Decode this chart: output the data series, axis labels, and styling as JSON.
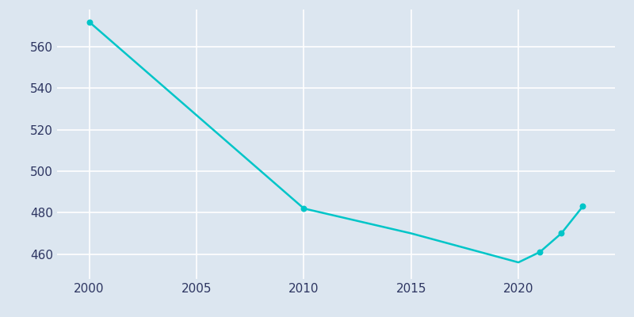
{
  "years": [
    2000,
    2010,
    2015,
    2020,
    2021,
    2022,
    2023
  ],
  "population": [
    572,
    482,
    470,
    456,
    461,
    470,
    483
  ],
  "line_color": "#00C5C8",
  "marker_years": [
    2000,
    2010,
    2021,
    2022,
    2023
  ],
  "marker_population": [
    572,
    482,
    461,
    470,
    483
  ],
  "bg_color": "#DCE6F0",
  "plot_bg_color": "#DCE6F0",
  "grid_color": "#FFFFFF",
  "text_color": "#2d3561",
  "xlim": [
    1998.5,
    2024.5
  ],
  "ylim": [
    448,
    578
  ],
  "yticks": [
    460,
    480,
    500,
    520,
    540,
    560
  ],
  "xticks": [
    2000,
    2005,
    2010,
    2015,
    2020
  ]
}
